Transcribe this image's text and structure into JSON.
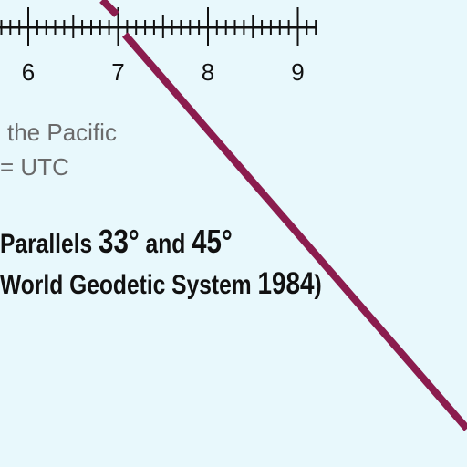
{
  "scale_bar": {
    "labels": [
      "6",
      "7",
      "8",
      "9"
    ]
  },
  "notes": {
    "line1": "the Pacific",
    "line2": "= UTC"
  },
  "projection": {
    "line1_prefix": "Parallels ",
    "parallel_1": "33°",
    "conj": " and ",
    "parallel_2": "45°",
    "line2_prefix": "World Geodetic System ",
    "year": "1984",
    "line2_suffix": ")"
  },
  "colors": {
    "water": "#e8f8fc",
    "route_line": "#8b1c4e",
    "text": "#111111",
    "note_text": "#6a6a6a"
  }
}
